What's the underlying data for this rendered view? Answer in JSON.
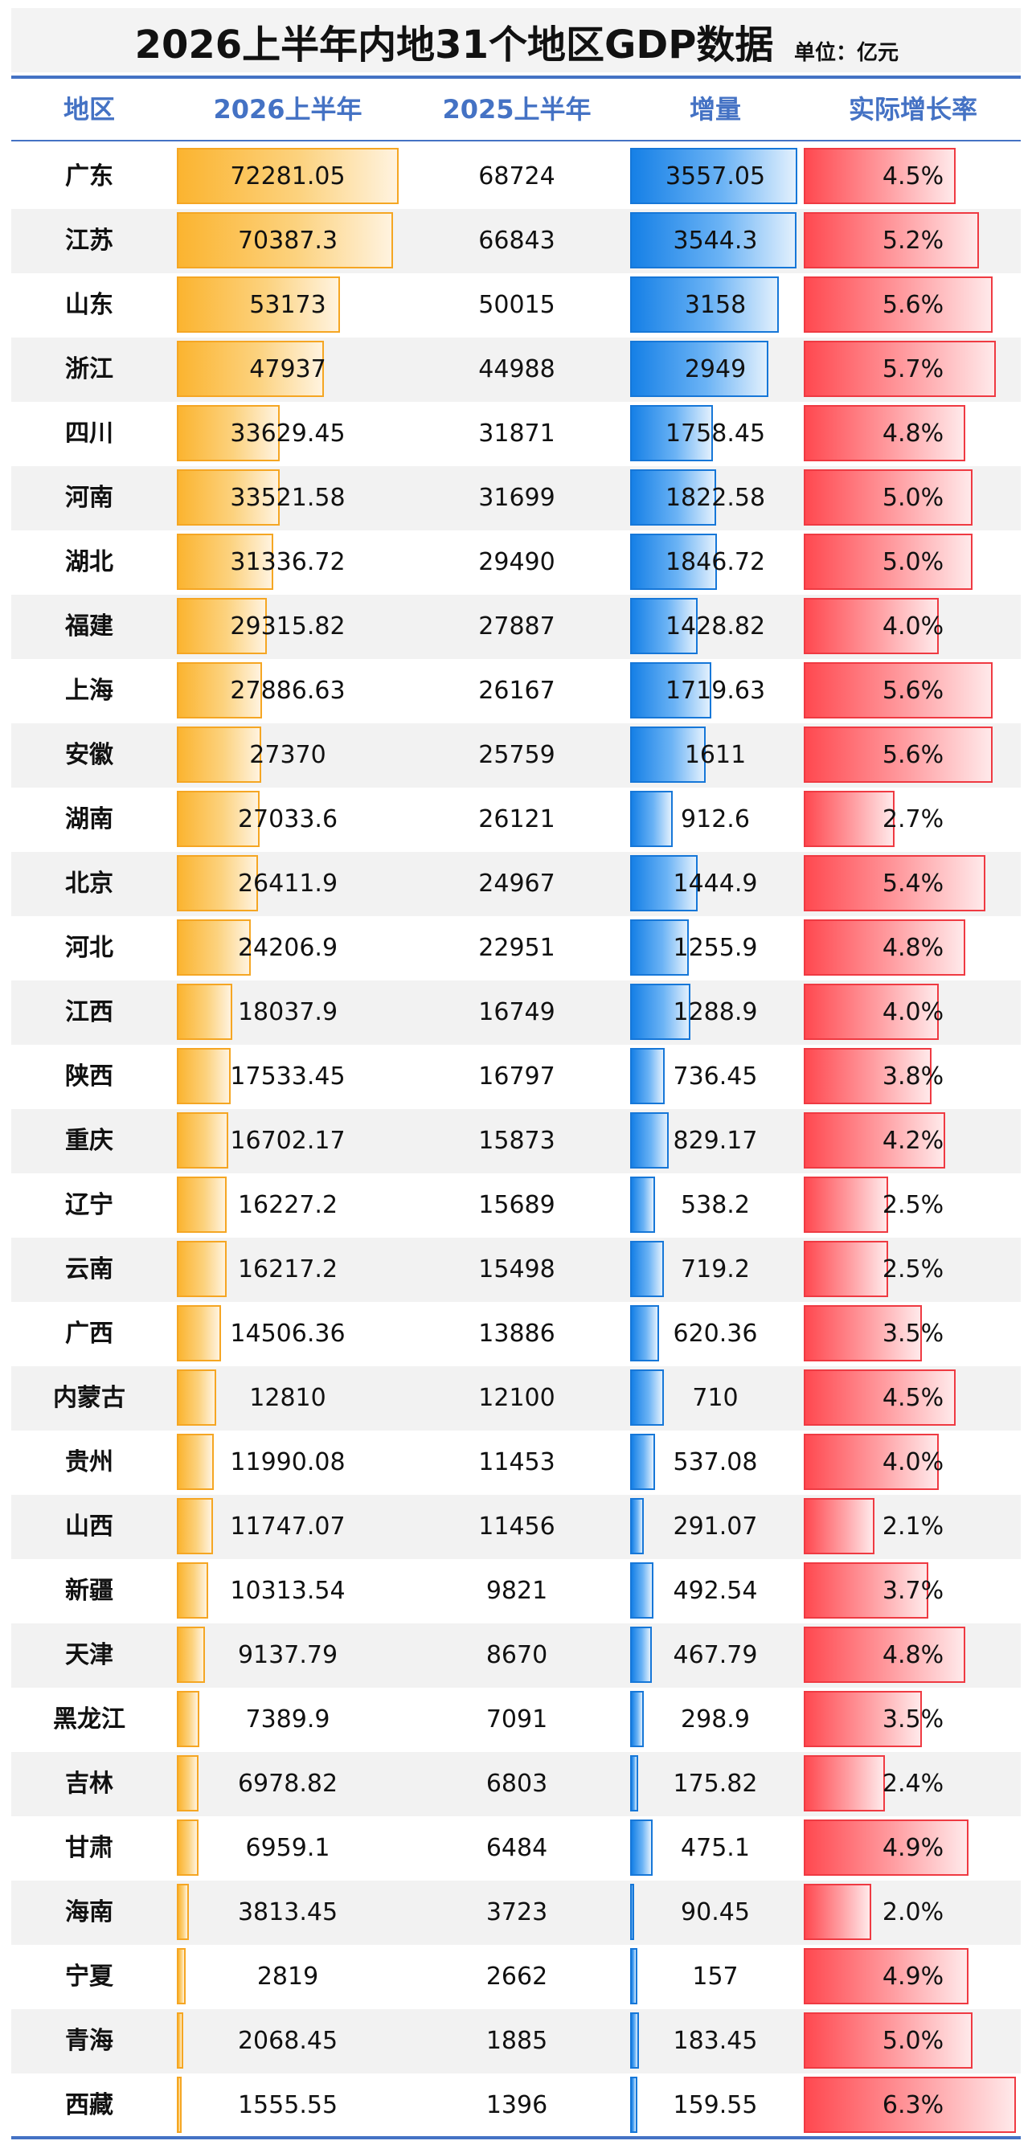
{
  "title": "2026上半年内地31个地区GDP数据",
  "unit": "单位：亿元",
  "headers": [
    "地区",
    "2026上半年",
    "2025上半年",
    "增量",
    "实际增长率"
  ],
  "colors": {
    "accent": "#4472c4",
    "gdp_bar": "#fbb430",
    "increment_bar": "#1680e6",
    "rate_bar": "#ff4950",
    "row_alt": "#f2f2f2"
  },
  "chart_data": {
    "type": "table",
    "columns": [
      "地区",
      "2026上半年",
      "2025上半年",
      "增量",
      "实际增长率"
    ],
    "rows": [
      {
        "region": "广东",
        "gdp_2026": "72281.05",
        "gdp_2025": "68724",
        "increment": "3557.05",
        "growth": "4.5%"
      },
      {
        "region": "江苏",
        "gdp_2026": "70387.3",
        "gdp_2025": "66843",
        "increment": "3544.3",
        "growth": "5.2%"
      },
      {
        "region": "山东",
        "gdp_2026": "53173",
        "gdp_2025": "50015",
        "increment": "3158",
        "growth": "5.6%"
      },
      {
        "region": "浙江",
        "gdp_2026": "47937",
        "gdp_2025": "44988",
        "increment": "2949",
        "growth": "5.7%"
      },
      {
        "region": "四川",
        "gdp_2026": "33629.45",
        "gdp_2025": "31871",
        "increment": "1758.45",
        "growth": "4.8%"
      },
      {
        "region": "河南",
        "gdp_2026": "33521.58",
        "gdp_2025": "31699",
        "increment": "1822.58",
        "growth": "5.0%"
      },
      {
        "region": "湖北",
        "gdp_2026": "31336.72",
        "gdp_2025": "29490",
        "increment": "1846.72",
        "growth": "5.0%"
      },
      {
        "region": "福建",
        "gdp_2026": "29315.82",
        "gdp_2025": "27887",
        "increment": "1428.82",
        "growth": "4.0%"
      },
      {
        "region": "上海",
        "gdp_2026": "27886.63",
        "gdp_2025": "26167",
        "increment": "1719.63",
        "growth": "5.6%"
      },
      {
        "region": "安徽",
        "gdp_2026": "27370",
        "gdp_2025": "25759",
        "increment": "1611",
        "growth": "5.6%"
      },
      {
        "region": "湖南",
        "gdp_2026": "27033.6",
        "gdp_2025": "26121",
        "increment": "912.6",
        "growth": "2.7%"
      },
      {
        "region": "北京",
        "gdp_2026": "26411.9",
        "gdp_2025": "24967",
        "increment": "1444.9",
        "growth": "5.4%"
      },
      {
        "region": "河北",
        "gdp_2026": "24206.9",
        "gdp_2025": "22951",
        "increment": "1255.9",
        "growth": "4.8%"
      },
      {
        "region": "江西",
        "gdp_2026": "18037.9",
        "gdp_2025": "16749",
        "increment": "1288.9",
        "growth": "4.0%"
      },
      {
        "region": "陕西",
        "gdp_2026": "17533.45",
        "gdp_2025": "16797",
        "increment": "736.45",
        "growth": "3.8%"
      },
      {
        "region": "重庆",
        "gdp_2026": "16702.17",
        "gdp_2025": "15873",
        "increment": "829.17",
        "growth": "4.2%"
      },
      {
        "region": "辽宁",
        "gdp_2026": "16227.2",
        "gdp_2025": "15689",
        "increment": "538.2",
        "growth": "2.5%"
      },
      {
        "region": "云南",
        "gdp_2026": "16217.2",
        "gdp_2025": "15498",
        "increment": "719.2",
        "growth": "2.5%"
      },
      {
        "region": "广西",
        "gdp_2026": "14506.36",
        "gdp_2025": "13886",
        "increment": "620.36",
        "growth": "3.5%"
      },
      {
        "region": "内蒙古",
        "gdp_2026": "12810",
        "gdp_2025": "12100",
        "increment": "710",
        "growth": "4.5%"
      },
      {
        "region": "贵州",
        "gdp_2026": "11990.08",
        "gdp_2025": "11453",
        "increment": "537.08",
        "growth": "4.0%"
      },
      {
        "region": "山西",
        "gdp_2026": "11747.07",
        "gdp_2025": "11456",
        "increment": "291.07",
        "growth": "2.1%"
      },
      {
        "region": "新疆",
        "gdp_2026": "10313.54",
        "gdp_2025": "9821",
        "increment": "492.54",
        "growth": "3.7%"
      },
      {
        "region": "天津",
        "gdp_2026": "9137.79",
        "gdp_2025": "8670",
        "increment": "467.79",
        "growth": "4.8%"
      },
      {
        "region": "黑龙江",
        "gdp_2026": "7389.9",
        "gdp_2025": "7091",
        "increment": "298.9",
        "growth": "3.5%"
      },
      {
        "region": "吉林",
        "gdp_2026": "6978.82",
        "gdp_2025": "6803",
        "increment": "175.82",
        "growth": "2.4%"
      },
      {
        "region": "甘肃",
        "gdp_2026": "6959.1",
        "gdp_2025": "6484",
        "increment": "475.1",
        "growth": "4.9%"
      },
      {
        "region": "海南",
        "gdp_2026": "3813.45",
        "gdp_2025": "3723",
        "increment": "90.45",
        "growth": "2.0%"
      },
      {
        "region": "宁夏",
        "gdp_2026": "2819",
        "gdp_2025": "2662",
        "increment": "157",
        "growth": "4.9%"
      },
      {
        "region": "青海",
        "gdp_2026": "2068.45",
        "gdp_2025": "1885",
        "increment": "183.45",
        "growth": "5.0%"
      },
      {
        "region": "西藏",
        "gdp_2026": "1555.55",
        "gdp_2025": "1396",
        "increment": "159.55",
        "growth": "6.3%"
      }
    ]
  }
}
